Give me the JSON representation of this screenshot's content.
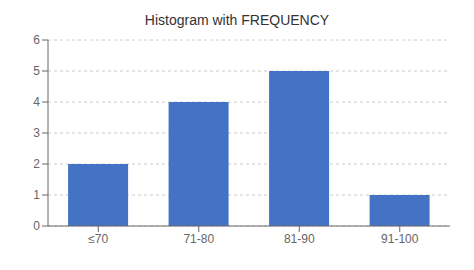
{
  "chart_data": {
    "type": "bar",
    "title": "Histogram with FREQUENCY",
    "categories": [
      "≤70",
      "71-80",
      "81-90",
      "91-100"
    ],
    "values": [
      2,
      4,
      5,
      1
    ],
    "color": "#4472c4",
    "ylim": [
      0,
      6
    ],
    "yticks": [
      0,
      1,
      2,
      3,
      4,
      5,
      6
    ],
    "grid": true
  }
}
